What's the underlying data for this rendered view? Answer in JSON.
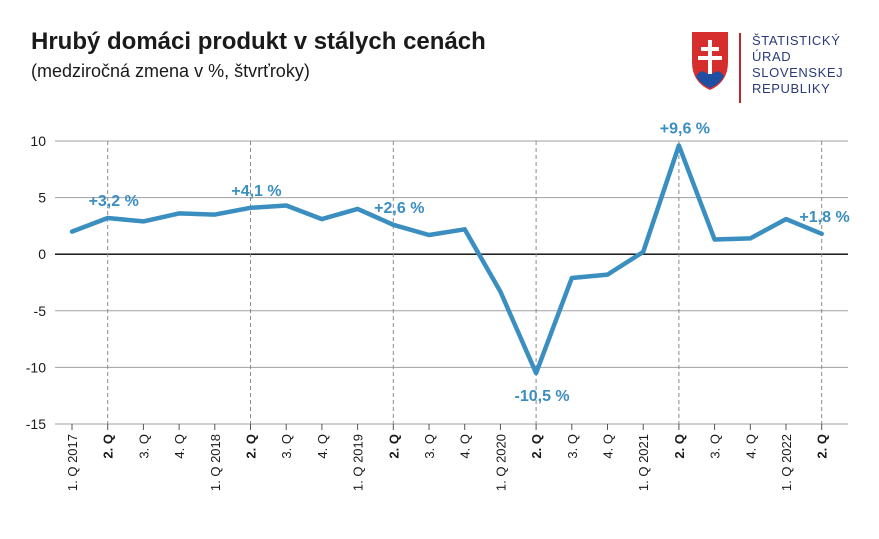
{
  "header": {
    "title": "Hrubý domáci produkt v stálych cenách",
    "subtitle": "(medziročná zmena v %, štvrťroky)"
  },
  "logo": {
    "lines": [
      "ŠTATISTICKÝ",
      "ÚRAD",
      "SLOVENSKEJ",
      "REPUBLIKY"
    ],
    "icon": "slovak-coat-of-arms-icon"
  },
  "colors": {
    "line": "#3a8fc0",
    "grid": "#a0a0a0",
    "zero_line": "#000000",
    "logo_text": "#2a3a7a",
    "logo_accent": "#c0272d"
  },
  "chart_data": {
    "type": "line",
    "categories": [
      "1. Q 2017",
      "2. Q",
      "3. Q",
      "4. Q",
      "1. Q 2018",
      "2. Q",
      "3. Q",
      "4. Q",
      "1. Q 2019",
      "2. Q",
      "3. Q",
      "4. Q",
      "1. Q 2020",
      "2. Q",
      "3. Q",
      "4. Q",
      "1. Q 2021",
      "2. Q",
      "3. Q",
      "4. Q",
      "1. Q 2022",
      "2. Q"
    ],
    "bold_categories": [
      1,
      5,
      9,
      13,
      17,
      21
    ],
    "series": [
      {
        "values": [
          2.0,
          3.2,
          2.9,
          3.6,
          3.5,
          4.1,
          4.3,
          3.1,
          4.0,
          2.6,
          1.7,
          2.2,
          -3.3,
          -10.5,
          -2.1,
          -1.8,
          0.2,
          9.6,
          1.3,
          1.4,
          3.1,
          1.8
        ]
      }
    ],
    "ylim": [
      -15,
      10
    ],
    "yticks": [
      10,
      5,
      0,
      -5,
      -10,
      -15
    ],
    "grid": true,
    "reference_lines": [
      1,
      5,
      9,
      13,
      17,
      21
    ],
    "annotations": [
      {
        "index": 1,
        "text": "+3,2 %"
      },
      {
        "index": 5,
        "text": "+4,1 %"
      },
      {
        "index": 9,
        "text": "+2,6 %"
      },
      {
        "index": 13,
        "text": "-10,5 %"
      },
      {
        "index": 17,
        "text": "+9,6 %"
      },
      {
        "index": 21,
        "text": "+1,8 %"
      }
    ],
    "xlabel": "",
    "ylabel": ""
  }
}
